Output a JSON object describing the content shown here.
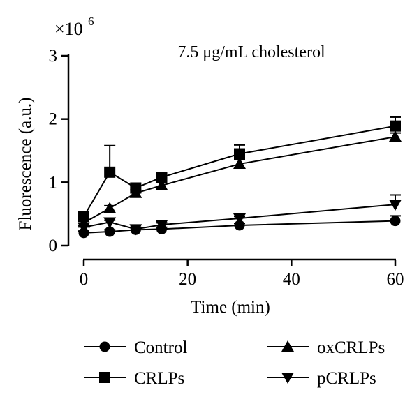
{
  "chart_data": {
    "type": "line",
    "title": "7.5 μg/mL cholesterol",
    "xlabel": "Time (min)",
    "ylabel": "Fluorescence  (a.u.)",
    "y_multiplier_base": "×10",
    "y_multiplier_exp": "6",
    "xlim": [
      0,
      60
    ],
    "ylim": [
      0,
      3
    ],
    "xticks": [
      0,
      20,
      40,
      60
    ],
    "yticks": [
      0,
      1,
      2,
      3
    ],
    "x": [
      0,
      5,
      10,
      15,
      30,
      60
    ],
    "legend_position": "bottom",
    "series": [
      {
        "name": "Control",
        "marker": "circle",
        "values": [
          0.2,
          0.22,
          0.25,
          0.26,
          0.32,
          0.39
        ],
        "errors": [
          0.03,
          0.03,
          0.03,
          0.03,
          0.03,
          0.08
        ]
      },
      {
        "name": "CRLPs",
        "marker": "square",
        "values": [
          0.46,
          1.16,
          0.91,
          1.08,
          1.45,
          1.89
        ],
        "errors": [
          0.05,
          0.42,
          0.05,
          0.05,
          0.14,
          0.14
        ]
      },
      {
        "name": "oxCRLPs",
        "marker": "triangle-up",
        "values": [
          0.36,
          0.59,
          0.83,
          0.95,
          1.29,
          1.72
        ],
        "errors": [
          0.04,
          0.04,
          0.05,
          0.05,
          0.07,
          0.06
        ]
      },
      {
        "name": "pCRLPs",
        "marker": "triangle-down",
        "values": [
          0.29,
          0.37,
          0.26,
          0.33,
          0.43,
          0.65
        ],
        "errors": [
          0.03,
          0.03,
          0.03,
          0.03,
          0.03,
          0.15
        ]
      }
    ]
  }
}
